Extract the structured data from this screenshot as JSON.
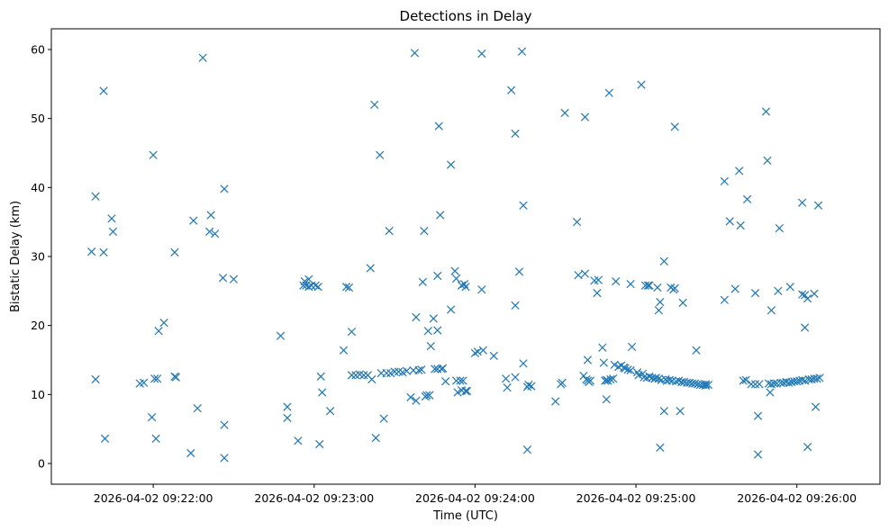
{
  "chart_data": {
    "type": "scatter",
    "title": "Detections in Delay",
    "xlabel": "Time (UTC)",
    "ylabel": "Bistatic Delay (km)",
    "marker": "x",
    "color": "#1f77b4",
    "x_unit": "seconds after 2026-04-02 09:20:00 UTC",
    "xlim": [
      22,
      331
    ],
    "ylim": [
      -3,
      63
    ],
    "xticks": [
      {
        "value": 60,
        "label": "2026-04-02 09:22:00"
      },
      {
        "value": 120,
        "label": "2026-04-02 09:23:00"
      },
      {
        "value": 180,
        "label": "2026-04-02 09:24:00"
      },
      {
        "value": 240,
        "label": "2026-04-02 09:25:00"
      },
      {
        "value": 300,
        "label": "2026-04-02 09:26:00"
      }
    ],
    "yticks": [
      0,
      10,
      20,
      30,
      40,
      50,
      60
    ],
    "points": [
      [
        37,
        30.7
      ],
      [
        38.5,
        38.7
      ],
      [
        38.5,
        12.2
      ],
      [
        41.5,
        54.0
      ],
      [
        41.5,
        30.6
      ],
      [
        42,
        3.6
      ],
      [
        44.5,
        35.5
      ],
      [
        45,
        33.6
      ],
      [
        55,
        11.6
      ],
      [
        56.5,
        11.7
      ],
      [
        59.5,
        6.7
      ],
      [
        60,
        44.7
      ],
      [
        60.5,
        12.3
      ],
      [
        61.5,
        12.3
      ],
      [
        61,
        3.6
      ],
      [
        62,
        19.2
      ],
      [
        64,
        20.4
      ],
      [
        68,
        30.6
      ],
      [
        68,
        12.6
      ],
      [
        68.5,
        12.5
      ],
      [
        74,
        1.5
      ],
      [
        75,
        35.2
      ],
      [
        76.5,
        8.0
      ],
      [
        78.5,
        58.8
      ],
      [
        81,
        33.6
      ],
      [
        81.5,
        36.0
      ],
      [
        83,
        33.3
      ],
      [
        86,
        26.9
      ],
      [
        86.5,
        39.8
      ],
      [
        86.5,
        5.6
      ],
      [
        86.5,
        0.8
      ],
      [
        90,
        26.7
      ],
      [
        107.5,
        18.5
      ],
      [
        110,
        8.2
      ],
      [
        110,
        6.6
      ],
      [
        114,
        3.3
      ],
      [
        116,
        25.8
      ],
      [
        116.5,
        26.4
      ],
      [
        117,
        25.8
      ],
      [
        118,
        25.6
      ],
      [
        118,
        26.7
      ],
      [
        119,
        25.8
      ],
      [
        120.5,
        25.8
      ],
      [
        121.5,
        25.6
      ],
      [
        122.5,
        12.6
      ],
      [
        123,
        10.3
      ],
      [
        122,
        2.8
      ],
      [
        126,
        7.6
      ],
      [
        131,
        16.4
      ],
      [
        132,
        25.6
      ],
      [
        133,
        25.5
      ],
      [
        134,
        19.1
      ],
      [
        134,
        12.8
      ],
      [
        135.5,
        12.8
      ],
      [
        137,
        12.9
      ],
      [
        138.5,
        12.8
      ],
      [
        140,
        12.8
      ],
      [
        141,
        28.3
      ],
      [
        141.5,
        12.2
      ],
      [
        142.5,
        52.0
      ],
      [
        143,
        3.7
      ],
      [
        144.5,
        44.7
      ],
      [
        145,
        13.1
      ],
      [
        146,
        6.5
      ],
      [
        147,
        13.1
      ],
      [
        148,
        33.7
      ],
      [
        148.5,
        13.1
      ],
      [
        150,
        13.3
      ],
      [
        151.5,
        13.3
      ],
      [
        153,
        13.2
      ],
      [
        154.5,
        13.4
      ],
      [
        156,
        9.6
      ],
      [
        157,
        13.5
      ],
      [
        158,
        9.1
      ],
      [
        157.5,
        59.5
      ],
      [
        158,
        21.2
      ],
      [
        159,
        13.5
      ],
      [
        160,
        13.6
      ],
      [
        160.5,
        26.3
      ],
      [
        161,
        33.7
      ],
      [
        161.5,
        9.7
      ],
      [
        162.5,
        19.2
      ],
      [
        162,
        9.9
      ],
      [
        163,
        9.9
      ],
      [
        163.5,
        17.0
      ],
      [
        164.5,
        21.0
      ],
      [
        165,
        13.7
      ],
      [
        166,
        13.7
      ],
      [
        166,
        27.2
      ],
      [
        166,
        19.3
      ],
      [
        166.5,
        48.9
      ],
      [
        167,
        36.0
      ],
      [
        167.5,
        13.7
      ],
      [
        168,
        13.8
      ],
      [
        169,
        11.9
      ],
      [
        171,
        43.3
      ],
      [
        171,
        22.3
      ],
      [
        172.5,
        27.9
      ],
      [
        173,
        26.8
      ],
      [
        173,
        12.0
      ],
      [
        173.5,
        10.3
      ],
      [
        174.5,
        12.0
      ],
      [
        175,
        25.8
      ],
      [
        175.5,
        12.0
      ],
      [
        175,
        10.6
      ],
      [
        176,
        26.0
      ],
      [
        176.5,
        25.6
      ],
      [
        176.5,
        10.5
      ],
      [
        177,
        10.5
      ],
      [
        180,
        16.0
      ],
      [
        181,
        16.2
      ],
      [
        182.5,
        59.4
      ],
      [
        182.5,
        25.2
      ],
      [
        183,
        16.4
      ],
      [
        187,
        15.6
      ],
      [
        191.5,
        12.3
      ],
      [
        192,
        11.0
      ],
      [
        193.5,
        54.1
      ],
      [
        195,
        47.8
      ],
      [
        195,
        22.9
      ],
      [
        195,
        12.5
      ],
      [
        196.5,
        27.8
      ],
      [
        198,
        37.4
      ],
      [
        198,
        14.5
      ],
      [
        197.5,
        59.7
      ],
      [
        199.5,
        11.1
      ],
      [
        199.5,
        2.0
      ],
      [
        200,
        11.4
      ],
      [
        201,
        11.2
      ],
      [
        210,
        9.0
      ],
      [
        212,
        11.5
      ],
      [
        212.5,
        11.7
      ],
      [
        213.5,
        50.8
      ],
      [
        218,
        35.0
      ],
      [
        218.5,
        27.3
      ],
      [
        220.5,
        12.7
      ],
      [
        221,
        27.5
      ],
      [
        221,
        50.2
      ],
      [
        222,
        12.0
      ],
      [
        221.5,
        12.2
      ],
      [
        222.5,
        11.8
      ],
      [
        222,
        15.0
      ],
      [
        223,
        12.0
      ],
      [
        224.5,
        26.5
      ],
      [
        225.5,
        24.7
      ],
      [
        226,
        26.6
      ],
      [
        227.5,
        16.8
      ],
      [
        228,
        14.6
      ],
      [
        228.5,
        12.0
      ],
      [
        229,
        12.1
      ],
      [
        229,
        9.3
      ],
      [
        229.5,
        12.0
      ],
      [
        230,
        53.7
      ],
      [
        230.5,
        12.2
      ],
      [
        231.5,
        12.3
      ],
      [
        232,
        14.3
      ],
      [
        232.5,
        26.4
      ],
      [
        233.5,
        14.0
      ],
      [
        234.5,
        14.2
      ],
      [
        235.5,
        13.9
      ],
      [
        236,
        13.8
      ],
      [
        237,
        13.6
      ],
      [
        238,
        26.0
      ],
      [
        238,
        13.5
      ],
      [
        238.5,
        16.9
      ],
      [
        240.5,
        13.2
      ],
      [
        241,
        12.8
      ],
      [
        242,
        54.9
      ],
      [
        242.5,
        13.0
      ],
      [
        243,
        12.5
      ],
      [
        243.5,
        25.8
      ],
      [
        244,
        12.4
      ],
      [
        244.5,
        25.8
      ],
      [
        245,
        12.6
      ],
      [
        245,
        25.8
      ],
      [
        246,
        12.4
      ],
      [
        247,
        12.3
      ],
      [
        247.5,
        12.4
      ],
      [
        248,
        25.5
      ],
      [
        248.5,
        22.2
      ],
      [
        248.5,
        12.3
      ],
      [
        249,
        23.4
      ],
      [
        249,
        2.3
      ],
      [
        249.5,
        12.1
      ],
      [
        250.5,
        29.3
      ],
      [
        250.5,
        7.6
      ],
      [
        251,
        12.2
      ],
      [
        251.5,
        12.0
      ],
      [
        252.5,
        12.1
      ],
      [
        253,
        25.5
      ],
      [
        253.5,
        12.0
      ],
      [
        254,
        25.2
      ],
      [
        254.5,
        25.4
      ],
      [
        254.5,
        48.8
      ],
      [
        255,
        11.9
      ],
      [
        256,
        12.0
      ],
      [
        256.5,
        7.6
      ],
      [
        257,
        11.8
      ],
      [
        257.5,
        23.3
      ],
      [
        258,
        11.8
      ],
      [
        259,
        11.7
      ],
      [
        260,
        11.7
      ],
      [
        261,
        11.6
      ],
      [
        262,
        11.6
      ],
      [
        262.5,
        16.4
      ],
      [
        263,
        11.5
      ],
      [
        264,
        11.4
      ],
      [
        265,
        11.4
      ],
      [
        266,
        11.3
      ],
      [
        266,
        11.5
      ],
      [
        267,
        11.4
      ],
      [
        273,
        40.9
      ],
      [
        273,
        23.7
      ],
      [
        275,
        35.1
      ],
      [
        277,
        25.3
      ],
      [
        278.5,
        42.4
      ],
      [
        279,
        34.5
      ],
      [
        280,
        12.0
      ],
      [
        281.5,
        38.3
      ],
      [
        281,
        12.1
      ],
      [
        283,
        11.5
      ],
      [
        284.5,
        24.7
      ],
      [
        284.5,
        11.5
      ],
      [
        285.5,
        6.9
      ],
      [
        285.5,
        1.3
      ],
      [
        286,
        11.5
      ],
      [
        288.5,
        51.0
      ],
      [
        289,
        43.9
      ],
      [
        289.5,
        11.6
      ],
      [
        290,
        10.3
      ],
      [
        290.5,
        22.2
      ],
      [
        290.5,
        11.5
      ],
      [
        291.5,
        11.6
      ],
      [
        292.5,
        11.6
      ],
      [
        293.5,
        34.1
      ],
      [
        293,
        25.0
      ],
      [
        294,
        11.7
      ],
      [
        295,
        11.7
      ],
      [
        296,
        11.8
      ],
      [
        297,
        11.7
      ],
      [
        297.5,
        25.6
      ],
      [
        298,
        11.8
      ],
      [
        299,
        11.9
      ],
      [
        300,
        11.9
      ],
      [
        301,
        12.0
      ],
      [
        302,
        37.8
      ],
      [
        302,
        24.5
      ],
      [
        302,
        12.1
      ],
      [
        303,
        24.4
      ],
      [
        303,
        19.7
      ],
      [
        303,
        12.0
      ],
      [
        304,
        23.9
      ],
      [
        304,
        2.4
      ],
      [
        304.5,
        12.2
      ],
      [
        305.5,
        12.2
      ],
      [
        306.5,
        24.6
      ],
      [
        306.5,
        12.3
      ],
      [
        307,
        8.2
      ],
      [
        307.5,
        12.3
      ],
      [
        308,
        37.4
      ],
      [
        308.5,
        12.4
      ]
    ]
  }
}
